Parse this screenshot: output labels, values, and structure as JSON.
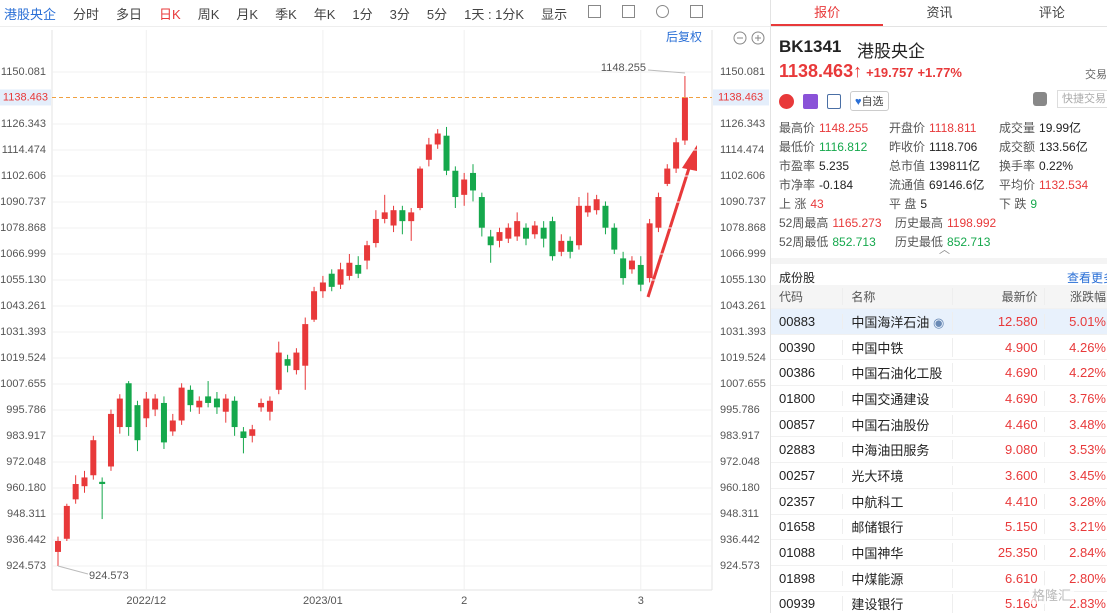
{
  "toolbar": {
    "items": [
      "港股央企",
      "分时",
      "多日",
      "日K",
      "周K",
      "月K",
      "季K",
      "年K",
      "1分",
      "3分",
      "5分",
      "1天 : 1分K",
      "显示"
    ],
    "active": 3
  },
  "chart": {
    "type": "candlestick",
    "adjust": "后复权",
    "up_color": "#e8393a",
    "down_color": "#15a84c",
    "ylim": [
      913.62,
      1169.25
    ],
    "yticks": [
      924.573,
      936.442,
      948.311,
      {
        "value": 960.18,
        "label": "960.180"
      },
      972.048,
      983.917,
      995.786,
      1007.655,
      1019.524,
      1031.393,
      1043.261,
      {
        "value": 1055.13,
        "label": "1055.130"
      },
      1066.999,
      1078.868,
      1090.737,
      1102.606,
      1114.474,
      1126.343,
      1150.081
    ],
    "dates": [
      {
        "label": "2022/12",
        "index": 10
      },
      {
        "label": "2023/01",
        "index": 30
      },
      {
        "label": "2",
        "index": 46
      },
      {
        "label": "3",
        "index": 66
      }
    ],
    "candles": [
      {
        "o": 931,
        "h": 938,
        "l": 924.573,
        "c": 936
      },
      {
        "o": 937,
        "h": 953,
        "l": 936,
        "c": 952
      },
      {
        "o": 955,
        "h": 966,
        "l": 953,
        "c": 962
      },
      {
        "o": 961,
        "h": 968,
        "l": 958,
        "c": 965
      },
      {
        "o": 966,
        "h": 984,
        "l": 964,
        "c": 982
      },
      {
        "o": 963,
        "h": 965,
        "l": 946,
        "c": 962
      },
      {
        "o": 970,
        "h": 996,
        "l": 968,
        "c": 994
      },
      {
        "o": 988,
        "h": 1003,
        "l": 985,
        "c": 1001
      },
      {
        "o": 1008,
        "h": 1009,
        "l": 984,
        "c": 988
      },
      {
        "o": 998,
        "h": 1000,
        "l": 977,
        "c": 982
      },
      {
        "o": 992,
        "h": 1004,
        "l": 988,
        "c": 1001
      },
      {
        "o": 996,
        "h": 1003,
        "l": 993,
        "c": 1001
      },
      {
        "o": 999,
        "h": 1002,
        "l": 978,
        "c": 981
      },
      {
        "o": 986,
        "h": 994,
        "l": 984,
        "c": 991
      },
      {
        "o": 991,
        "h": 1008,
        "l": 989,
        "c": 1006
      },
      {
        "o": 1005,
        "h": 1007,
        "l": 995,
        "c": 998
      },
      {
        "o": 997,
        "h": 1002,
        "l": 994,
        "c": 1000
      },
      {
        "o": 1002,
        "h": 1009,
        "l": 997,
        "c": 999
      },
      {
        "o": 1001,
        "h": 1004,
        "l": 994,
        "c": 997
      },
      {
        "o": 995,
        "h": 1003,
        "l": 990,
        "c": 1001
      },
      {
        "o": 1000,
        "h": 1002,
        "l": 984,
        "c": 988
      },
      {
        "o": 986,
        "h": 988,
        "l": 976,
        "c": 983
      },
      {
        "o": 984,
        "h": 989,
        "l": 981,
        "c": 987
      },
      {
        "o": 997,
        "h": 1001,
        "l": 995,
        "c": 999
      },
      {
        "o": 995,
        "h": 1002,
        "l": 991,
        "c": 1000
      },
      {
        "o": 1005,
        "h": 1027,
        "l": 1003,
        "c": 1022
      },
      {
        "o": 1019,
        "h": 1021,
        "l": 1013,
        "c": 1016
      },
      {
        "o": 1014,
        "h": 1024,
        "l": 1012,
        "c": 1022
      },
      {
        "o": 1016,
        "h": 1038,
        "l": 1005,
        "c": 1035
      },
      {
        "o": 1037,
        "h": 1052,
        "l": 1036,
        "c": 1050
      },
      {
        "o": 1050,
        "h": 1057,
        "l": 1047,
        "c": 1054
      },
      {
        "o": 1058,
        "h": 1060,
        "l": 1050,
        "c": 1052
      },
      {
        "o": 1053,
        "h": 1063,
        "l": 1051,
        "c": 1060
      },
      {
        "o": 1057,
        "h": 1067,
        "l": 1055,
        "c": 1063
      },
      {
        "o": 1062,
        "h": 1066,
        "l": 1056,
        "c": 1058
      },
      {
        "o": 1064,
        "h": 1073,
        "l": 1060,
        "c": 1071
      },
      {
        "o": 1072,
        "h": 1087,
        "l": 1070,
        "c": 1083
      },
      {
        "o": 1083,
        "h": 1094,
        "l": 1081,
        "c": 1086
      },
      {
        "o": 1080,
        "h": 1089,
        "l": 1077,
        "c": 1087
      },
      {
        "o": 1087,
        "h": 1089,
        "l": 1076,
        "c": 1082
      },
      {
        "o": 1082,
        "h": 1088,
        "l": 1073,
        "c": 1086
      },
      {
        "o": 1088,
        "h": 1107,
        "l": 1087,
        "c": 1106
      },
      {
        "o": 1110,
        "h": 1120,
        "l": 1107,
        "c": 1117
      },
      {
        "o": 1117,
        "h": 1124,
        "l": 1115,
        "c": 1122
      },
      {
        "o": 1121,
        "h": 1125,
        "l": 1103,
        "c": 1105
      },
      {
        "o": 1105,
        "h": 1107,
        "l": 1088,
        "c": 1093
      },
      {
        "o": 1094,
        "h": 1104,
        "l": 1089,
        "c": 1101
      },
      {
        "o": 1104,
        "h": 1108,
        "l": 1091,
        "c": 1096
      },
      {
        "o": 1093,
        "h": 1095,
        "l": 1075,
        "c": 1079
      },
      {
        "o": 1075,
        "h": 1078,
        "l": 1063,
        "c": 1071
      },
      {
        "o": 1073,
        "h": 1079,
        "l": 1070,
        "c": 1077
      },
      {
        "o": 1074,
        "h": 1081,
        "l": 1072,
        "c": 1079
      },
      {
        "o": 1075,
        "h": 1086,
        "l": 1073,
        "c": 1082
      },
      {
        "o": 1079,
        "h": 1081,
        "l": 1071,
        "c": 1074
      },
      {
        "o": 1076,
        "h": 1082,
        "l": 1074,
        "c": 1080
      },
      {
        "o": 1079,
        "h": 1082,
        "l": 1070,
        "c": 1074
      },
      {
        "o": 1082,
        "h": 1084,
        "l": 1064,
        "c": 1066
      },
      {
        "o": 1068,
        "h": 1076,
        "l": 1066,
        "c": 1073
      },
      {
        "o": 1073,
        "h": 1075,
        "l": 1065,
        "c": 1068
      },
      {
        "o": 1071,
        "h": 1093,
        "l": 1069,
        "c": 1089
      },
      {
        "o": 1086,
        "h": 1095,
        "l": 1084,
        "c": 1089
      },
      {
        "o": 1087,
        "h": 1094,
        "l": 1085,
        "c": 1092
      },
      {
        "o": 1089,
        "h": 1091,
        "l": 1076,
        "c": 1079
      },
      {
        "o": 1079,
        "h": 1081,
        "l": 1067,
        "c": 1069
      },
      {
        "o": 1065,
        "h": 1068,
        "l": 1053,
        "c": 1056
      },
      {
        "o": 1060,
        "h": 1066,
        "l": 1058,
        "c": 1064
      },
      {
        "o": 1062,
        "h": 1066,
        "l": 1050,
        "c": 1053
      },
      {
        "o": 1056,
        "h": 1083,
        "l": 1054,
        "c": 1081
      },
      {
        "o": 1079,
        "h": 1095,
        "l": 1077,
        "c": 1093
      },
      {
        "o": 1099,
        "h": 1108,
        "l": 1098,
        "c": 1106
      },
      {
        "o": 1106,
        "h": 1120,
        "l": 1104,
        "c": 1118
      },
      {
        "o": 1118.811,
        "h": 1148.255,
        "l": 1116.812,
        "c": 1138.463
      }
    ]
  },
  "panel": {
    "tabs": [
      "报价",
      "资讯",
      "评论"
    ],
    "code": "BK1341",
    "name": "港股央企",
    "price": "1138.463",
    "change": "+19.757",
    "pct": "+1.77%",
    "trade": "交易",
    "fav": "自选",
    "quick": "快捷交易",
    "stats": [
      [
        {
          "label": "最高价",
          "value": "1148.255",
          "color": "#e8393a"
        },
        {
          "label": "开盘价",
          "value": "1118.811",
          "color": "#e8393a"
        },
        {
          "label": "成交量",
          "value": "19.99亿",
          "color": "#222"
        }
      ],
      [
        {
          "label": "最低价",
          "value": "1116.812",
          "color": "#15a84c"
        },
        {
          "label": "昨收价",
          "value": "1118.706",
          "color": "#222"
        },
        {
          "label": "成交额",
          "value": "133.56亿",
          "color": "#222"
        }
      ],
      [
        {
          "label": "市盈率",
          "value": "5.235",
          "color": "#222"
        },
        {
          "label": "总市值",
          "value": "139811亿",
          "color": "#222"
        },
        {
          "label": "换手率",
          "value": "0.22%",
          "color": "#222"
        }
      ],
      [
        {
          "label": "市净率",
          "value": "-0.184",
          "color": "#222"
        },
        {
          "label": "流通值",
          "value": "69146.6亿",
          "color": "#222"
        },
        {
          "label": "平均价",
          "value": "1132.534",
          "color": "#e8393a"
        }
      ],
      [
        {
          "label": "上 涨",
          "value": "43",
          "color": "#e8393a"
        },
        {
          "label": "平 盘",
          "value": "5",
          "color": "#222"
        },
        {
          "label": "下 跌",
          "value": "9",
          "color": "#15a84c"
        }
      ],
      [
        {
          "label": "52周最高",
          "value": "1165.273",
          "color": "#e8393a"
        },
        {
          "label": "历史最高",
          "value": "1198.992",
          "color": "#e8393a"
        }
      ],
      [
        {
          "label": "52周最低",
          "value": "852.713",
          "color": "#15a84c"
        },
        {
          "label": "历史最低",
          "value": "852.713",
          "color": "#15a84c"
        }
      ]
    ],
    "section": "成份股",
    "more": "查看更多",
    "table": {
      "header": [
        "代码",
        "名称",
        "最新价",
        "涨跌幅"
      ],
      "rows": [
        [
          "00883",
          "中国海洋石油",
          "12.580",
          "5.01%"
        ],
        [
          "00390",
          "中国中铁",
          "4.900",
          "4.26%"
        ],
        [
          "00386",
          "中国石油化工股",
          "4.690",
          "4.22%"
        ],
        [
          "01800",
          "中国交通建设",
          "4.690",
          "3.76%"
        ],
        [
          "00857",
          "中国石油股份",
          "4.460",
          "3.48%"
        ],
        [
          "02883",
          "中海油田服务",
          "9.080",
          "3.53%"
        ],
        [
          "00257",
          "光大环境",
          "3.600",
          "3.45%"
        ],
        [
          "02357",
          "中航科工",
          "4.410",
          "3.28%"
        ],
        [
          "01658",
          "邮储银行",
          "5.150",
          "3.21%"
        ],
        [
          "01088",
          "中国神华",
          "25.350",
          "2.84%"
        ],
        [
          "01898",
          "中煤能源",
          "6.610",
          "2.80%"
        ],
        [
          "00939",
          "建设银行",
          "5.160",
          "2.83%"
        ]
      ]
    },
    "watermark": "格隆汇"
  }
}
